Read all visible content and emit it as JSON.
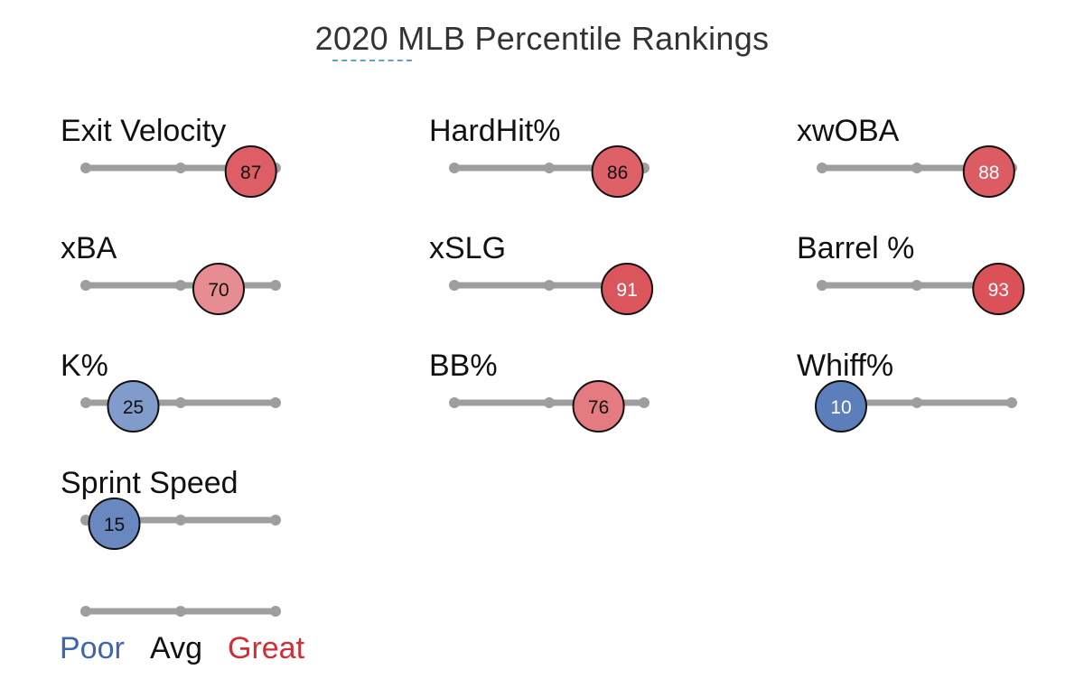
{
  "title": "2020 MLB Percentile Rankings",
  "chart_data": {
    "type": "dot-slider",
    "title": "2020 MLB Percentile Rankings",
    "scale": [
      0,
      100
    ],
    "ticks": [
      0,
      50,
      100
    ],
    "metrics": [
      {
        "label": "Exit Velocity",
        "value": 87
      },
      {
        "label": "HardHit%",
        "value": 86
      },
      {
        "label": "xwOBA",
        "value": 88
      },
      {
        "label": "xBA",
        "value": 70
      },
      {
        "label": "xSLG",
        "value": 91
      },
      {
        "label": "Barrel %",
        "value": 93
      },
      {
        "label": "K%",
        "value": 25
      },
      {
        "label": "BB%",
        "value": 76
      },
      {
        "label": "Whiff%",
        "value": 10
      },
      {
        "label": "Sprint Speed",
        "value": 15
      }
    ],
    "legend": {
      "labels": [
        "Poor",
        "Avg",
        "Great"
      ],
      "colors": [
        "#3d66ad",
        "#111111",
        "#d22d35"
      ]
    },
    "colors": {
      "track": "#9e9e9e",
      "poor": "#3d66ad",
      "avg": "#ffffff",
      "great": "#d22d35"
    }
  }
}
